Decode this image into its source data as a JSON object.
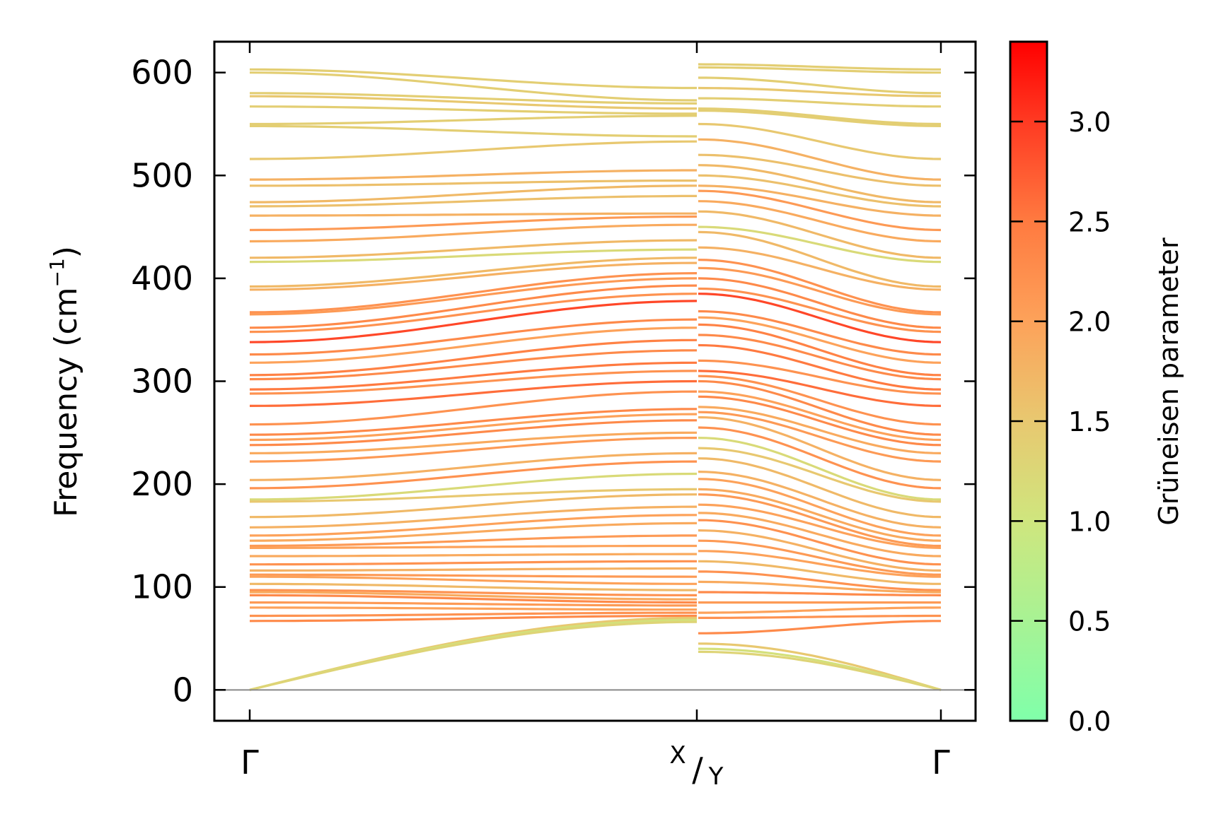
{
  "chart_data": {
    "type": "line",
    "title": "",
    "xlabel": "",
    "ylabel": "Frequency (cm",
    "ylabel_sup": "−1",
    "ylabel_close": ")",
    "ylim": [
      -30,
      630
    ],
    "yticks": [
      0,
      100,
      200,
      300,
      400,
      500,
      600
    ],
    "ytick_labels": [
      "0",
      "100",
      "200",
      "300",
      "400",
      "500",
      "600"
    ],
    "xticks": [
      {
        "label": "Γ",
        "pos": 0
      },
      {
        "label_main": "X",
        "label_sub": "Y",
        "pos": 1
      },
      {
        "label": "Γ",
        "pos": 1.545
      }
    ],
    "segments": [
      {
        "from": "Γ",
        "to": "X",
        "length": 1.0
      },
      {
        "from": "Y",
        "to": "Γ",
        "length": 0.545
      }
    ],
    "bands": {
      "gamma_start": [
        603,
        600,
        580,
        577,
        567,
        550,
        548,
        516,
        496,
        490,
        474,
        470,
        461,
        447,
        436,
        420,
        416,
        392,
        389,
        367,
        365,
        352,
        348,
        338,
        326,
        318,
        306,
        302,
        292,
        288,
        276,
        258,
        248,
        243,
        238,
        230,
        222,
        204,
        196,
        185,
        183,
        168,
        158,
        150,
        145,
        140,
        138,
        130,
        122,
        116,
        112,
        110,
        103,
        97,
        95,
        92,
        85,
        80,
        72,
        67,
        0,
        0,
        0
      ],
      "x_end": [
        585,
        573,
        570,
        565,
        560,
        558,
        538,
        533,
        505,
        495,
        490,
        480,
        463,
        460,
        452,
        437,
        428,
        420,
        415,
        405,
        400,
        393,
        385,
        378,
        360,
        352,
        340,
        330,
        318,
        310,
        300,
        290,
        273,
        268,
        262,
        250,
        245,
        230,
        222,
        210,
        195,
        190,
        178,
        170,
        162,
        150,
        140,
        132,
        125,
        118,
        110,
        103,
        97,
        92,
        88,
        85,
        82,
        78,
        75,
        72,
        70,
        68,
        66
      ],
      "y_start": [
        608,
        605,
        595,
        585,
        575,
        565,
        563,
        550,
        535,
        520,
        510,
        500,
        490,
        485,
        475,
        465,
        450,
        445,
        430,
        418,
        410,
        400,
        390,
        385,
        368,
        362,
        355,
        345,
        335,
        320,
        310,
        305,
        300,
        290,
        285,
        275,
        270,
        265,
        255,
        245,
        235,
        225,
        212,
        205,
        195,
        190,
        180,
        172,
        165,
        155,
        145,
        135,
        125,
        115,
        105,
        95,
        85,
        75,
        70,
        55,
        45,
        40,
        37
      ],
      "gamma_end": [
        603,
        600,
        580,
        577,
        567,
        550,
        548,
        516,
        496,
        490,
        474,
        470,
        461,
        447,
        436,
        420,
        416,
        392,
        389,
        367,
        365,
        352,
        348,
        338,
        326,
        318,
        306,
        302,
        292,
        288,
        276,
        258,
        248,
        243,
        238,
        230,
        222,
        204,
        196,
        185,
        183,
        168,
        158,
        150,
        145,
        140,
        138,
        130,
        122,
        116,
        112,
        110,
        103,
        97,
        95,
        92,
        85,
        80,
        72,
        67,
        0,
        0,
        0
      ],
      "gruneisen": [
        1.4,
        1.4,
        1.4,
        1.5,
        1.4,
        1.4,
        1.4,
        1.5,
        1.8,
        1.6,
        1.7,
        1.6,
        1.8,
        2.1,
        1.9,
        1.7,
        1.2,
        1.7,
        1.8,
        2.2,
        2.1,
        2.3,
        2.2,
        2.9,
        2.3,
        2.0,
        2.4,
        2.3,
        2.5,
        2.2,
        2.6,
        2.2,
        2.3,
        2.0,
        2.3,
        1.9,
        2.1,
        1.8,
        2.2,
        1.2,
        1.5,
        1.7,
        1.8,
        2.0,
        1.9,
        2.1,
        2.0,
        1.9,
        2.2,
        1.8,
        2.1,
        2.0,
        1.7,
        2.2,
        1.9,
        2.3,
        2.1,
        2.0,
        2.2,
        2.3,
        1.5,
        1.1,
        1.3
      ]
    },
    "colorbar": {
      "label": "Grüneisen parameter",
      "range": [
        0,
        3.4
      ],
      "ticks": [
        0,
        0.5,
        1.0,
        1.5,
        2.0,
        2.5,
        3.0
      ],
      "tick_labels": [
        "0.0",
        "0.5",
        "1.0",
        "1.5",
        "2.0",
        "2.5",
        "3.0"
      ],
      "colormap": [
        {
          "v": 0.0,
          "c": "#80ffaa"
        },
        {
          "v": 1.0,
          "c": "#cfe67e"
        },
        {
          "v": 1.5,
          "c": "#e8c870"
        },
        {
          "v": 2.0,
          "c": "#fda25a"
        },
        {
          "v": 2.5,
          "c": "#ff7a40"
        },
        {
          "v": 3.0,
          "c": "#ff3a22"
        },
        {
          "v": 3.4,
          "c": "#ff0000"
        }
      ]
    },
    "zero_line_color": "#888888"
  }
}
